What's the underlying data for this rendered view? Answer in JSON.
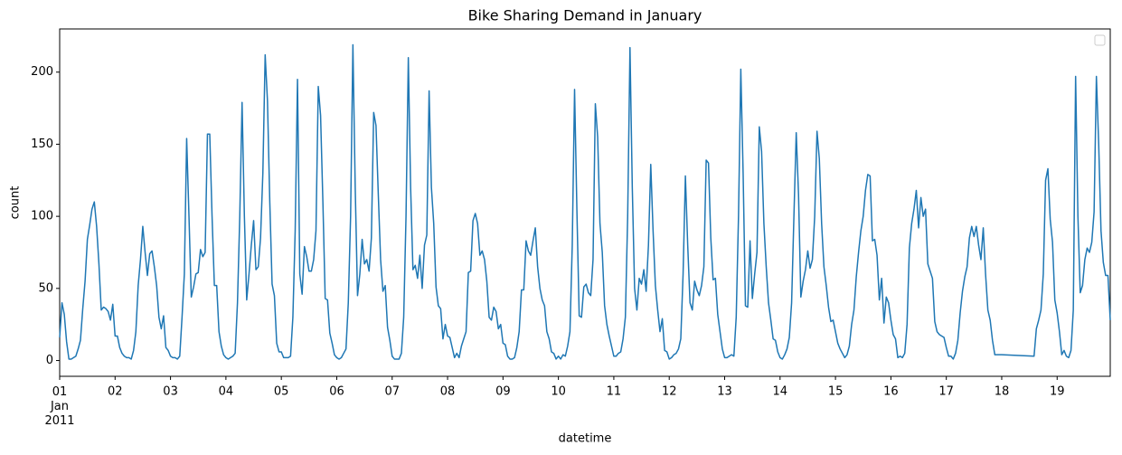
{
  "chart_data": {
    "type": "line",
    "title": "Bike Sharing Demand in January",
    "xlabel": "datetime",
    "ylabel": "count",
    "color": "#1f77b4",
    "legend": "upper right",
    "grid": false,
    "xlim": [
      "2011-01-01 00:00",
      "2011-01-19 23:00"
    ],
    "ylim": [
      -10.95,
      229.95
    ],
    "yticks": [
      0,
      50,
      100,
      150,
      200
    ],
    "xticks": [
      {
        "value": "2011-01-01 00:00",
        "label": "01\nJan\n2011"
      },
      {
        "value": "2011-01-02 00:00",
        "label": "02"
      },
      {
        "value": "2011-01-03 00:00",
        "label": "03"
      },
      {
        "value": "2011-01-04 00:00",
        "label": "04"
      },
      {
        "value": "2011-01-05 00:00",
        "label": "05"
      },
      {
        "value": "2011-01-06 00:00",
        "label": "06"
      },
      {
        "value": "2011-01-07 00:00",
        "label": "07"
      },
      {
        "value": "2011-01-08 00:00",
        "label": "08"
      },
      {
        "value": "2011-01-09 00:00",
        "label": "09"
      },
      {
        "value": "2011-01-10 00:00",
        "label": "10"
      },
      {
        "value": "2011-01-11 00:00",
        "label": "11"
      },
      {
        "value": "2011-01-12 00:00",
        "label": "12"
      },
      {
        "value": "2011-01-13 00:00",
        "label": "13"
      },
      {
        "value": "2011-01-14 00:00",
        "label": "14"
      },
      {
        "value": "2011-01-15 00:00",
        "label": "15"
      },
      {
        "value": "2011-01-16 00:00",
        "label": "16"
      },
      {
        "value": "2011-01-17 00:00",
        "label": "17"
      },
      {
        "value": "2011-01-18 00:00",
        "label": "18"
      },
      {
        "value": "2011-01-19 00:00",
        "label": "19"
      }
    ],
    "x": [
      "2011-01-01 00:00",
      "2011-01-01 01:00",
      "2011-01-01 02:00",
      "2011-01-01 03:00",
      "2011-01-01 04:00",
      "2011-01-01 05:00",
      "2011-01-01 06:00",
      "2011-01-01 07:00",
      "2011-01-01 08:00",
      "2011-01-01 09:00",
      "2011-01-01 10:00",
      "2011-01-01 11:00",
      "2011-01-01 12:00",
      "2011-01-01 13:00",
      "2011-01-01 14:00",
      "2011-01-01 15:00",
      "2011-01-01 16:00",
      "2011-01-01 17:00",
      "2011-01-01 18:00",
      "2011-01-01 19:00",
      "2011-01-01 20:00",
      "2011-01-01 21:00",
      "2011-01-01 22:00",
      "2011-01-01 23:00",
      "2011-01-02 00:00",
      "2011-01-02 01:00",
      "2011-01-02 02:00",
      "2011-01-02 03:00",
      "2011-01-02 04:00",
      "2011-01-02 05:00",
      "2011-01-02 06:00",
      "2011-01-02 07:00",
      "2011-01-02 08:00",
      "2011-01-02 09:00",
      "2011-01-02 10:00",
      "2011-01-02 11:00",
      "2011-01-02 12:00",
      "2011-01-02 13:00",
      "2011-01-02 14:00",
      "2011-01-02 15:00",
      "2011-01-02 16:00",
      "2011-01-02 17:00",
      "2011-01-02 18:00",
      "2011-01-02 19:00",
      "2011-01-02 20:00",
      "2011-01-02 21:00",
      "2011-01-02 22:00",
      "2011-01-02 23:00",
      "2011-01-03 00:00",
      "2011-01-03 01:00",
      "2011-01-03 02:00",
      "2011-01-03 03:00",
      "2011-01-03 04:00",
      "2011-01-03 05:00",
      "2011-01-03 06:00",
      "2011-01-03 07:00",
      "2011-01-03 08:00",
      "2011-01-03 09:00",
      "2011-01-03 10:00",
      "2011-01-03 11:00",
      "2011-01-03 12:00",
      "2011-01-03 13:00",
      "2011-01-03 14:00",
      "2011-01-03 15:00",
      "2011-01-03 16:00",
      "2011-01-03 17:00",
      "2011-01-03 18:00",
      "2011-01-03 19:00",
      "2011-01-03 20:00",
      "2011-01-03 21:00",
      "2011-01-03 22:00",
      "2011-01-03 23:00",
      "2011-01-04 00:00",
      "2011-01-04 01:00",
      "2011-01-04 02:00",
      "2011-01-04 03:00",
      "2011-01-04 04:00",
      "2011-01-04 05:00",
      "2011-01-04 06:00",
      "2011-01-04 07:00",
      "2011-01-04 08:00",
      "2011-01-04 09:00",
      "2011-01-04 10:00",
      "2011-01-04 11:00",
      "2011-01-04 12:00",
      "2011-01-04 13:00",
      "2011-01-04 14:00",
      "2011-01-04 15:00",
      "2011-01-04 16:00",
      "2011-01-04 17:00",
      "2011-01-04 18:00",
      "2011-01-04 19:00",
      "2011-01-04 20:00",
      "2011-01-04 21:00",
      "2011-01-04 22:00",
      "2011-01-04 23:00",
      "2011-01-05 00:00",
      "2011-01-05 01:00",
      "2011-01-05 02:00",
      "2011-01-05 03:00",
      "2011-01-05 04:00",
      "2011-01-05 05:00",
      "2011-01-05 06:00",
      "2011-01-05 07:00",
      "2011-01-05 08:00",
      "2011-01-05 09:00",
      "2011-01-05 10:00",
      "2011-01-05 11:00",
      "2011-01-05 12:00",
      "2011-01-05 13:00",
      "2011-01-05 14:00",
      "2011-01-05 15:00",
      "2011-01-05 16:00",
      "2011-01-05 17:00",
      "2011-01-05 18:00",
      "2011-01-05 19:00",
      "2011-01-05 20:00",
      "2011-01-05 21:00",
      "2011-01-05 22:00",
      "2011-01-05 23:00",
      "2011-01-06 00:00",
      "2011-01-06 01:00",
      "2011-01-06 02:00",
      "2011-01-06 03:00",
      "2011-01-06 04:00",
      "2011-01-06 05:00",
      "2011-01-06 06:00",
      "2011-01-06 07:00",
      "2011-01-06 08:00",
      "2011-01-06 09:00",
      "2011-01-06 10:00",
      "2011-01-06 11:00",
      "2011-01-06 12:00",
      "2011-01-06 13:00",
      "2011-01-06 14:00",
      "2011-01-06 15:00",
      "2011-01-06 16:00",
      "2011-01-06 17:00",
      "2011-01-06 18:00",
      "2011-01-06 19:00",
      "2011-01-06 20:00",
      "2011-01-06 21:00",
      "2011-01-06 22:00",
      "2011-01-06 23:00",
      "2011-01-07 00:00",
      "2011-01-07 01:00",
      "2011-01-07 02:00",
      "2011-01-07 03:00",
      "2011-01-07 04:00",
      "2011-01-07 05:00",
      "2011-01-07 06:00",
      "2011-01-07 07:00",
      "2011-01-07 08:00",
      "2011-01-07 09:00",
      "2011-01-07 10:00",
      "2011-01-07 11:00",
      "2011-01-07 12:00",
      "2011-01-07 13:00",
      "2011-01-07 14:00",
      "2011-01-07 15:00",
      "2011-01-07 16:00",
      "2011-01-07 17:00",
      "2011-01-07 18:00",
      "2011-01-07 19:00",
      "2011-01-07 20:00",
      "2011-01-07 21:00",
      "2011-01-07 22:00",
      "2011-01-07 23:00",
      "2011-01-08 00:00",
      "2011-01-08 01:00",
      "2011-01-08 02:00",
      "2011-01-08 03:00",
      "2011-01-08 04:00",
      "2011-01-08 05:00",
      "2011-01-08 06:00",
      "2011-01-08 07:00",
      "2011-01-08 08:00",
      "2011-01-08 09:00",
      "2011-01-08 10:00",
      "2011-01-08 11:00",
      "2011-01-08 12:00",
      "2011-01-08 13:00",
      "2011-01-08 14:00",
      "2011-01-08 15:00",
      "2011-01-08 16:00",
      "2011-01-08 17:00",
      "2011-01-08 18:00",
      "2011-01-08 19:00",
      "2011-01-08 20:00",
      "2011-01-08 21:00",
      "2011-01-08 22:00",
      "2011-01-08 23:00",
      "2011-01-09 00:00",
      "2011-01-09 01:00",
      "2011-01-09 02:00",
      "2011-01-09 03:00",
      "2011-01-09 04:00",
      "2011-01-09 05:00",
      "2011-01-09 06:00",
      "2011-01-09 07:00",
      "2011-01-09 08:00",
      "2011-01-09 09:00",
      "2011-01-09 10:00",
      "2011-01-09 11:00",
      "2011-01-09 12:00",
      "2011-01-09 13:00",
      "2011-01-09 14:00",
      "2011-01-09 15:00",
      "2011-01-09 16:00",
      "2011-01-09 17:00",
      "2011-01-09 18:00",
      "2011-01-09 19:00",
      "2011-01-09 20:00",
      "2011-01-09 21:00",
      "2011-01-09 22:00",
      "2011-01-09 23:00",
      "2011-01-10 00:00",
      "2011-01-10 01:00",
      "2011-01-10 02:00",
      "2011-01-10 03:00",
      "2011-01-10 04:00",
      "2011-01-10 05:00",
      "2011-01-10 06:00",
      "2011-01-10 07:00",
      "2011-01-10 08:00",
      "2011-01-10 09:00",
      "2011-01-10 10:00",
      "2011-01-10 11:00",
      "2011-01-10 12:00",
      "2011-01-10 13:00",
      "2011-01-10 14:00",
      "2011-01-10 15:00",
      "2011-01-10 16:00",
      "2011-01-10 17:00",
      "2011-01-10 18:00",
      "2011-01-10 19:00",
      "2011-01-10 20:00",
      "2011-01-10 21:00",
      "2011-01-10 22:00",
      "2011-01-10 23:00",
      "2011-01-11 00:00",
      "2011-01-11 01:00",
      "2011-01-11 02:00",
      "2011-01-11 03:00",
      "2011-01-11 04:00",
      "2011-01-11 05:00",
      "2011-01-11 06:00",
      "2011-01-11 07:00",
      "2011-01-11 08:00",
      "2011-01-11 09:00",
      "2011-01-11 10:00",
      "2011-01-11 11:00",
      "2011-01-11 12:00",
      "2011-01-11 13:00",
      "2011-01-11 14:00",
      "2011-01-11 15:00",
      "2011-01-11 16:00",
      "2011-01-11 17:00",
      "2011-01-11 18:00",
      "2011-01-11 19:00",
      "2011-01-11 20:00",
      "2011-01-11 21:00",
      "2011-01-11 22:00",
      "2011-01-11 23:00",
      "2011-01-12 00:00",
      "2011-01-12 01:00",
      "2011-01-12 02:00",
      "2011-01-12 03:00",
      "2011-01-12 04:00",
      "2011-01-12 05:00",
      "2011-01-12 06:00",
      "2011-01-12 07:00",
      "2011-01-12 08:00",
      "2011-01-12 09:00",
      "2011-01-12 10:00",
      "2011-01-12 11:00",
      "2011-01-12 12:00",
      "2011-01-12 13:00",
      "2011-01-12 14:00",
      "2011-01-12 15:00",
      "2011-01-12 16:00",
      "2011-01-12 17:00",
      "2011-01-12 18:00",
      "2011-01-12 19:00",
      "2011-01-12 20:00",
      "2011-01-12 21:00",
      "2011-01-12 22:00",
      "2011-01-12 23:00",
      "2011-01-13 00:00",
      "2011-01-13 01:00",
      "2011-01-13 02:00",
      "2011-01-13 03:00",
      "2011-01-13 04:00",
      "2011-01-13 05:00",
      "2011-01-13 06:00",
      "2011-01-13 07:00",
      "2011-01-13 08:00",
      "2011-01-13 09:00",
      "2011-01-13 10:00",
      "2011-01-13 11:00",
      "2011-01-13 12:00",
      "2011-01-13 13:00",
      "2011-01-13 14:00",
      "2011-01-13 15:00",
      "2011-01-13 16:00",
      "2011-01-13 17:00",
      "2011-01-13 18:00",
      "2011-01-13 19:00",
      "2011-01-13 20:00",
      "2011-01-13 21:00",
      "2011-01-13 22:00",
      "2011-01-13 23:00",
      "2011-01-14 00:00",
      "2011-01-14 01:00",
      "2011-01-14 02:00",
      "2011-01-14 03:00",
      "2011-01-14 04:00",
      "2011-01-14 05:00",
      "2011-01-14 06:00",
      "2011-01-14 07:00",
      "2011-01-14 08:00",
      "2011-01-14 09:00",
      "2011-01-14 10:00",
      "2011-01-14 11:00",
      "2011-01-14 12:00",
      "2011-01-14 13:00",
      "2011-01-14 14:00",
      "2011-01-14 15:00",
      "2011-01-14 16:00",
      "2011-01-14 17:00",
      "2011-01-14 18:00",
      "2011-01-14 19:00",
      "2011-01-14 20:00",
      "2011-01-14 21:00",
      "2011-01-14 22:00",
      "2011-01-14 23:00",
      "2011-01-15 00:00",
      "2011-01-15 01:00",
      "2011-01-15 02:00",
      "2011-01-15 03:00",
      "2011-01-15 04:00",
      "2011-01-15 05:00",
      "2011-01-15 06:00",
      "2011-01-15 07:00",
      "2011-01-15 08:00",
      "2011-01-15 09:00",
      "2011-01-15 10:00",
      "2011-01-15 11:00",
      "2011-01-15 12:00",
      "2011-01-15 13:00",
      "2011-01-15 14:00",
      "2011-01-15 15:00",
      "2011-01-15 16:00",
      "2011-01-15 17:00",
      "2011-01-15 18:00",
      "2011-01-15 19:00",
      "2011-01-15 20:00",
      "2011-01-15 21:00",
      "2011-01-15 22:00",
      "2011-01-15 23:00",
      "2011-01-16 00:00",
      "2011-01-16 01:00",
      "2011-01-16 02:00",
      "2011-01-16 03:00",
      "2011-01-16 04:00",
      "2011-01-16 05:00",
      "2011-01-16 06:00",
      "2011-01-16 07:00",
      "2011-01-16 08:00",
      "2011-01-16 09:00",
      "2011-01-16 10:00",
      "2011-01-16 11:00",
      "2011-01-16 12:00",
      "2011-01-16 13:00",
      "2011-01-16 14:00",
      "2011-01-16 15:00",
      "2011-01-16 16:00",
      "2011-01-16 17:00",
      "2011-01-16 18:00",
      "2011-01-16 19:00",
      "2011-01-16 20:00",
      "2011-01-16 21:00",
      "2011-01-16 22:00",
      "2011-01-16 23:00",
      "2011-01-17 00:00",
      "2011-01-17 01:00",
      "2011-01-17 02:00",
      "2011-01-17 03:00",
      "2011-01-17 04:00",
      "2011-01-17 05:00",
      "2011-01-17 06:00",
      "2011-01-17 07:00",
      "2011-01-17 08:00",
      "2011-01-17 09:00",
      "2011-01-17 10:00",
      "2011-01-17 11:00",
      "2011-01-17 12:00",
      "2011-01-17 13:00",
      "2011-01-17 14:00",
      "2011-01-17 15:00",
      "2011-01-17 16:00",
      "2011-01-17 17:00",
      "2011-01-17 18:00",
      "2011-01-17 19:00",
      "2011-01-17 20:00",
      "2011-01-17 21:00",
      "2011-01-18 00:00",
      "2011-01-18 14:00",
      "2011-01-18 15:00",
      "2011-01-18 16:00",
      "2011-01-18 17:00",
      "2011-01-18 18:00",
      "2011-01-18 19:00",
      "2011-01-18 20:00",
      "2011-01-18 21:00",
      "2011-01-18 22:00",
      "2011-01-18 23:00",
      "2011-01-19 00:00",
      "2011-01-19 01:00",
      "2011-01-19 02:00",
      "2011-01-19 03:00",
      "2011-01-19 04:00",
      "2011-01-19 05:00",
      "2011-01-19 06:00",
      "2011-01-19 07:00",
      "2011-01-19 08:00",
      "2011-01-19 09:00",
      "2011-01-19 10:00",
      "2011-01-19 11:00",
      "2011-01-19 12:00",
      "2011-01-19 13:00",
      "2011-01-19 14:00",
      "2011-01-19 15:00",
      "2011-01-19 16:00",
      "2011-01-19 17:00",
      "2011-01-19 18:00",
      "2011-01-19 19:00",
      "2011-01-19 20:00",
      "2011-01-19 21:00",
      "2011-01-19 22:00",
      "2011-01-19 23:00"
    ],
    "values": [
      16,
      40,
      32,
      13,
      1,
      1,
      2,
      3,
      8,
      14,
      36,
      55,
      84,
      94,
      105,
      110,
      93,
      67,
      35,
      37,
      36,
      34,
      28,
      39,
      17,
      17,
      9,
      5,
      3,
      2,
      2,
      1,
      7,
      20,
      52,
      70,
      93,
      75,
      59,
      74,
      76,
      65,
      52,
      30,
      22,
      31,
      9,
      7,
      3,
      2,
      2,
      1,
      3,
      30,
      60,
      154,
      100,
      44,
      51,
      60,
      61,
      77,
      72,
      75,
      157,
      157,
      100,
      52,
      52,
      20,
      10,
      4,
      2,
      1,
      2,
      3,
      5,
      40,
      100,
      179,
      100,
      42,
      60,
      80,
      97,
      63,
      65,
      85,
      130,
      212,
      180,
      110,
      53,
      45,
      12,
      6,
      6,
      2,
      2,
      2,
      3,
      30,
      90,
      195,
      60,
      46,
      79,
      72,
      62,
      62,
      70,
      90,
      190,
      170,
      110,
      43,
      42,
      19,
      12,
      4,
      2,
      1,
      2,
      5,
      8,
      40,
      100,
      219,
      120,
      45,
      60,
      84,
      67,
      70,
      62,
      85,
      172,
      163,
      115,
      70,
      48,
      52,
      23,
      14,
      3,
      1,
      1,
      1,
      5,
      30,
      100,
      210,
      120,
      63,
      66,
      57,
      73,
      50,
      80,
      87,
      187,
      120,
      95,
      51,
      38,
      36,
      15,
      25,
      17,
      16,
      9,
      2,
      5,
      2,
      10,
      15,
      20,
      61,
      62,
      97,
      102,
      95,
      73,
      76,
      70,
      55,
      30,
      28,
      37,
      34,
      22,
      25,
      12,
      11,
      3,
      1,
      1,
      2,
      9,
      20,
      49,
      49,
      83,
      76,
      73,
      83,
      92,
      65,
      50,
      42,
      38,
      20,
      15,
      6,
      5,
      1,
      3,
      1,
      4,
      3,
      10,
      20,
      80,
      188,
      105,
      31,
      30,
      51,
      53,
      47,
      45,
      70,
      178,
      155,
      95,
      75,
      38,
      25,
      17,
      10,
      3,
      3,
      5,
      6,
      15,
      30,
      100,
      217,
      120,
      50,
      35,
      57,
      53,
      63,
      48,
      80,
      136,
      90,
      52,
      35,
      20,
      29,
      7,
      6,
      1,
      2,
      4,
      5,
      8,
      15,
      60,
      128,
      80,
      40,
      35,
      55,
      49,
      45,
      52,
      65,
      139,
      137,
      85,
      56,
      57,
      32,
      20,
      8,
      2,
      2,
      3,
      4,
      3,
      30,
      100,
      202,
      130,
      38,
      37,
      83,
      43,
      60,
      75,
      162,
      145,
      95,
      65,
      40,
      28,
      15,
      14,
      6,
      2,
      1,
      4,
      8,
      16,
      40,
      100,
      158,
      115,
      44,
      55,
      63,
      76,
      64,
      70,
      100,
      159,
      140,
      95,
      65,
      52,
      37,
      27,
      28,
      20,
      12,
      8,
      5,
      2,
      4,
      10,
      25,
      35,
      58,
      75,
      90,
      100,
      118,
      129,
      128,
      83,
      84,
      73,
      42,
      57,
      26,
      44,
      40,
      28,
      18,
      15,
      2,
      3,
      2,
      5,
      25,
      78,
      95,
      105,
      118,
      92,
      113,
      100,
      105,
      67,
      62,
      57,
      27,
      20,
      18,
      17,
      16,
      9,
      3,
      3,
      1,
      5,
      14,
      33,
      48,
      58,
      65,
      85,
      93,
      86,
      93,
      80,
      70,
      92,
      60,
      35,
      28,
      14,
      4,
      4,
      3,
      22,
      28,
      35,
      60,
      125,
      133,
      98,
      82,
      42,
      33,
      20,
      4,
      7,
      3,
      2,
      7,
      35,
      197,
      100,
      47,
      52,
      70,
      78,
      75,
      82,
      103,
      197,
      150,
      90,
      68,
      59,
      59,
      28
    ]
  }
}
